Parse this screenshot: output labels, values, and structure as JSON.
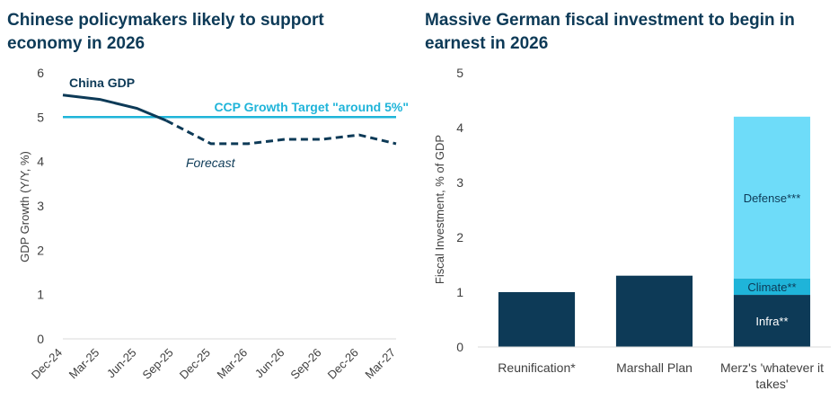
{
  "left_title": "Chinese policymakers likely to support economy in 2026",
  "right_title": "Massive German fiscal investment to begin in earnest in 2026",
  "colors": {
    "navy": "#0d3a57",
    "cyan": "#1fb4d9",
    "light_cyan": "#6edcf9",
    "axis": "#d9d9d9",
    "text": "#404040"
  },
  "chart_data": [
    {
      "type": "line",
      "title": "Chinese policymakers likely to support economy in 2026",
      "xlabel": "",
      "ylabel": "GDP Growth (Y/Y, %)",
      "ylim": [
        0,
        6
      ],
      "yticks": [
        "0",
        "1",
        "2",
        "3",
        "4",
        "5",
        "6"
      ],
      "categories": [
        "Dec-24",
        "Mar-25",
        "Jun-25",
        "Sep-25",
        "Dec-25",
        "Mar-26",
        "Jun-26",
        "Sep-26",
        "Dec-26",
        "Mar-27"
      ],
      "series": [
        {
          "name": "China GDP",
          "style": "solid",
          "points": [
            [
              0,
              5.5
            ],
            [
              1,
              5.4
            ],
            [
              2,
              5.2
            ],
            [
              2.8,
              4.92
            ]
          ]
        },
        {
          "name": "Forecast",
          "style": "dashed",
          "points": [
            [
              2.8,
              4.92
            ],
            [
              4,
              4.4
            ],
            [
              5,
              4.4
            ],
            [
              6,
              4.5
            ],
            [
              7,
              4.5
            ],
            [
              8,
              4.6
            ],
            [
              9,
              4.4
            ]
          ]
        },
        {
          "name": "CCP Growth Target \"around 5%\"",
          "style": "solid",
          "points": [
            [
              0,
              5.0
            ],
            [
              9,
              5.0
            ]
          ]
        }
      ],
      "annotations": [
        "China GDP",
        "CCP Growth Target \"around 5%\"",
        "Forecast"
      ]
    },
    {
      "type": "bar",
      "stacked": true,
      "title": "Massive German fiscal investment to begin in earnest in 2026",
      "xlabel": "",
      "ylabel": "Fiscal Investment, % of GDP",
      "ylim": [
        0,
        5
      ],
      "yticks": [
        "0",
        "1",
        "2",
        "3",
        "4",
        "5"
      ],
      "categories": [
        "Reunification*",
        "Marshall Plan",
        "Merz's 'whatever it takes'"
      ],
      "category_lines": [
        [
          "Reunification*"
        ],
        [
          "Marshall Plan"
        ],
        [
          "Merz's 'whatever it",
          "takes'"
        ]
      ],
      "series": [
        {
          "name": "Infra**",
          "values": [
            1.0,
            1.3,
            0.95
          ]
        },
        {
          "name": "Climate**",
          "values": [
            0,
            0,
            0.3
          ]
        },
        {
          "name": "Defense***",
          "values": [
            0,
            0,
            2.95
          ]
        }
      ]
    }
  ]
}
